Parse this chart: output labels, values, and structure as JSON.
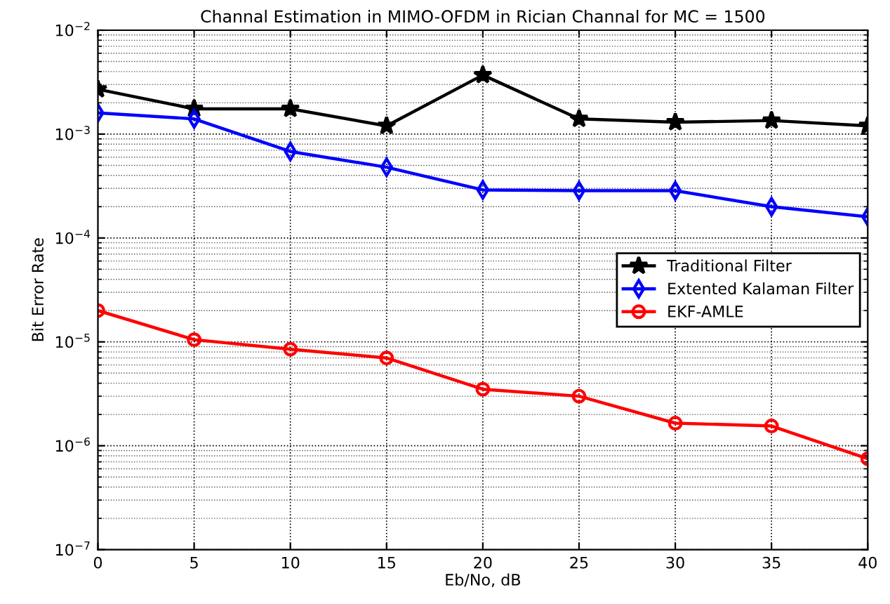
{
  "chart_data": {
    "type": "line",
    "title": "Channal Estimation in MIMO-OFDM in Rician Channal for MC = 1500",
    "xlabel": "Eb/No, dB",
    "ylabel": "Bit Error Rate",
    "x": [
      0,
      5,
      10,
      15,
      20,
      25,
      30,
      35,
      40
    ],
    "series": [
      {
        "name": "Traditional Filter",
        "color": "#000000",
        "marker": "star",
        "values": [
          0.0027,
          0.00175,
          0.00175,
          0.0012,
          0.0037,
          0.0014,
          0.0013,
          0.00135,
          0.0012
        ]
      },
      {
        "name": "Extented Kalaman Filter",
        "color": "#0000ff",
        "marker": "diamond",
        "values": [
          0.0016,
          0.0014,
          0.00068,
          0.00048,
          0.00029,
          0.000285,
          0.000285,
          0.0002,
          0.00016
        ]
      },
      {
        "name": "EKF-AMLE",
        "color": "#ff0000",
        "marker": "circle",
        "values": [
          2e-05,
          1.05e-05,
          8.5e-06,
          7e-06,
          3.5e-06,
          3e-06,
          1.65e-06,
          1.55e-06,
          7.5e-07
        ]
      }
    ],
    "log": "y",
    "xlim": [
      0,
      40
    ],
    "xticks": [
      0,
      5,
      10,
      15,
      20,
      25,
      30,
      35,
      40
    ],
    "ylim": [
      1e-07,
      0.01
    ],
    "yticks": [
      {
        "value": 1e-07,
        "label": "10$^{−7}$"
      },
      {
        "value": 1e-06,
        "label": "10$^{−6}$"
      },
      {
        "value": 1e-05,
        "label": "10$^{−5}$"
      },
      {
        "value": 0.0001,
        "label": "10$^{−4}$"
      },
      {
        "value": 0.001,
        "label": "10$^{−3}$"
      },
      {
        "value": 0.01,
        "label": "10$^{−2}$"
      }
    ],
    "grid": true,
    "legend": "center right",
    "line_style": "solid"
  }
}
